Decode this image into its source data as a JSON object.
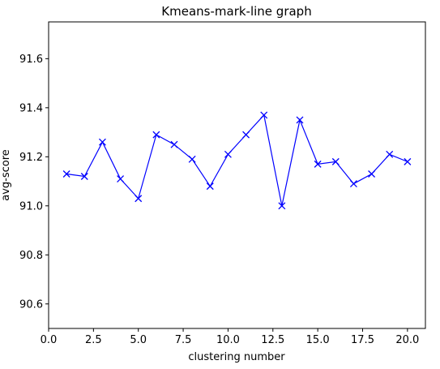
{
  "chart_data": {
    "type": "line",
    "title": "Kmeans-mark-line graph",
    "xlabel": "clustering number",
    "ylabel": "avg-score",
    "xlim": [
      0,
      21
    ],
    "ylim": [
      90.5,
      91.75
    ],
    "x_ticks": [
      0.0,
      2.5,
      5.0,
      7.5,
      10.0,
      12.5,
      15.0,
      17.5,
      20.0
    ],
    "x_tick_labels": [
      "0.0",
      "2.5",
      "5.0",
      "7.5",
      "10.0",
      "12.5",
      "15.0",
      "17.5",
      "20.0"
    ],
    "y_ticks": [
      90.6,
      90.8,
      91.0,
      91.2,
      91.4,
      91.6
    ],
    "y_tick_labels": [
      "90.6",
      "90.8",
      "91.0",
      "91.2",
      "91.4",
      "91.6"
    ],
    "grid": false,
    "legend": "none",
    "series": [
      {
        "color": "#0000ff",
        "marker": "x",
        "x": [
          1,
          2,
          3,
          4,
          5,
          6,
          7,
          8,
          9,
          10,
          11,
          12,
          13,
          14,
          15,
          16,
          17,
          18,
          19,
          20
        ],
        "y": [
          91.13,
          91.12,
          91.26,
          91.11,
          91.03,
          91.29,
          91.25,
          91.19,
          91.08,
          91.21,
          91.29,
          91.37,
          91.0,
          91.35,
          91.17,
          91.18,
          91.09,
          91.13,
          91.21,
          91.18
        ]
      }
    ]
  }
}
